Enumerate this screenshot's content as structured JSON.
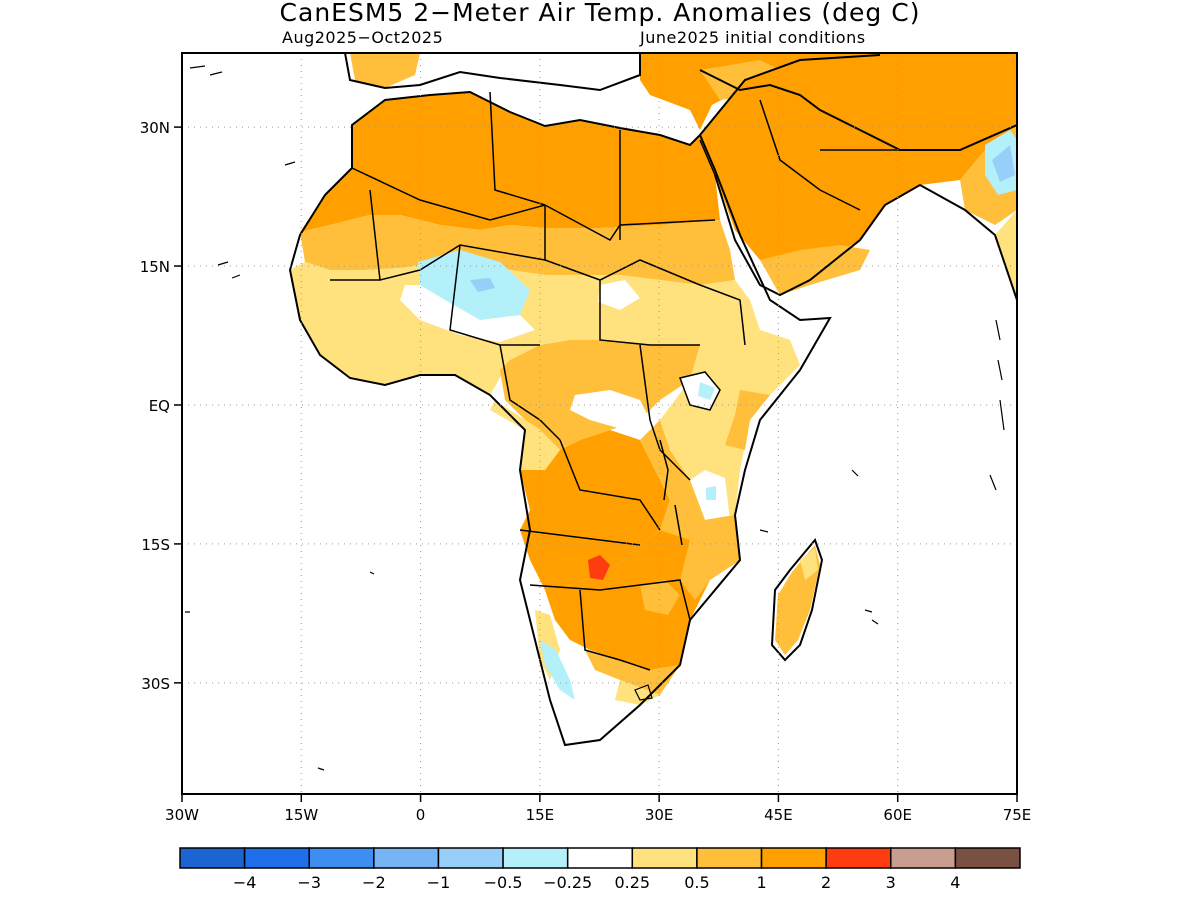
{
  "title": "CanESM5 2−Meter Air Temp. Anomalies (deg C)",
  "subtitle_left": "Aug2025−Oct2025",
  "subtitle_right": "June2025 initial conditions",
  "map": {
    "lon_range": [
      -30,
      75
    ],
    "lat_range": [
      -42,
      38
    ],
    "lon_ticks": [
      {
        "value": -30,
        "label": "30W"
      },
      {
        "value": -15,
        "label": "15W"
      },
      {
        "value": 0,
        "label": "0"
      },
      {
        "value": 15,
        "label": "15E"
      },
      {
        "value": 30,
        "label": "30E"
      },
      {
        "value": 45,
        "label": "45E"
      },
      {
        "value": 60,
        "label": "60E"
      },
      {
        "value": 75,
        "label": "75E"
      }
    ],
    "lat_ticks": [
      {
        "value": 30,
        "label": "30N"
      },
      {
        "value": 15,
        "label": "15N"
      },
      {
        "value": 0,
        "label": "EQ"
      },
      {
        "value": -15,
        "label": "15S"
      },
      {
        "value": -30,
        "label": "30S"
      }
    ],
    "grid": "dotted"
  },
  "colorbar": {
    "colors": [
      "#1c64d2",
      "#1f6fea",
      "#3d8ef0",
      "#77b4f5",
      "#97cff8",
      "#b4f0fa",
      "#ffffff",
      "#ffe17d",
      "#ffbf3a",
      "#ffa000",
      "#ff3c0f",
      "#c99e90",
      "#7a5043"
    ],
    "labels": [
      "−4",
      "−3",
      "−2",
      "−1",
      "−0.5",
      "−0.25",
      "0.25",
      "0.5",
      "1",
      "2",
      "3",
      "4"
    ]
  }
}
